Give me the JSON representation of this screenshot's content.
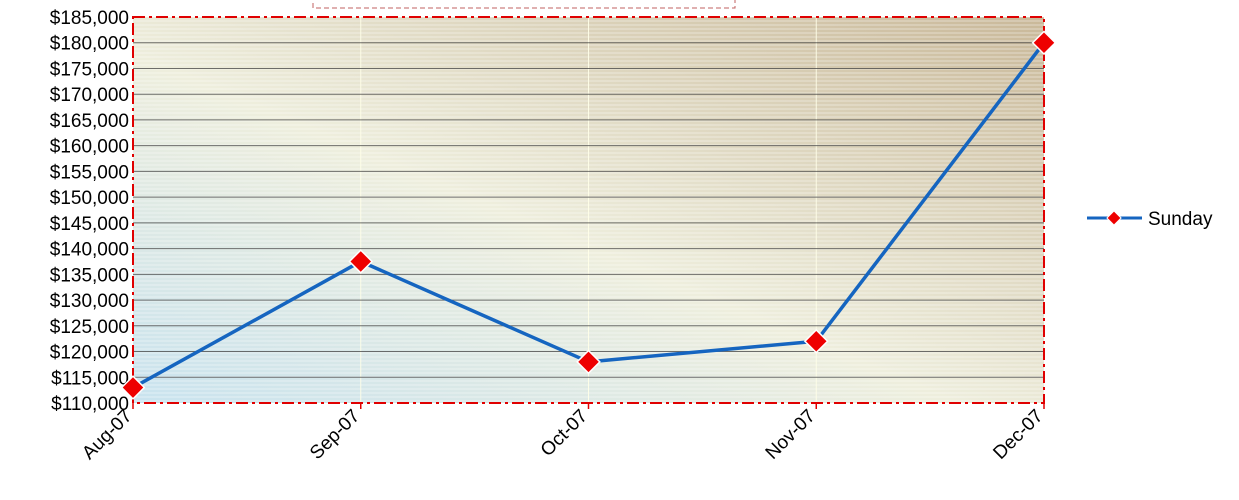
{
  "chart_data": {
    "type": "line",
    "title": "",
    "xlabel": "",
    "ylabel": "",
    "categories": [
      "Aug-07",
      "Sep-07",
      "Oct-07",
      "Nov-07",
      "Dec-07"
    ],
    "series": [
      {
        "name": "Sunday",
        "values": [
          113000,
          137500,
          118000,
          122000,
          180000
        ],
        "color": "#1565c0",
        "marker_color": "#ee0000"
      }
    ],
    "ylim": [
      110000,
      185000
    ],
    "ytick_step": 5000,
    "yticks": [
      "$110,000",
      "$115,000",
      "$120,000",
      "$125,000",
      "$130,000",
      "$135,000",
      "$140,000",
      "$145,000",
      "$150,000",
      "$155,000",
      "$160,000",
      "$165,000",
      "$170,000",
      "$175,000",
      "$180,000",
      "$185,000"
    ],
    "grid": true,
    "legend_position": "right",
    "colors": {
      "plot_border": "#e00000",
      "gridline": "#404040"
    }
  }
}
